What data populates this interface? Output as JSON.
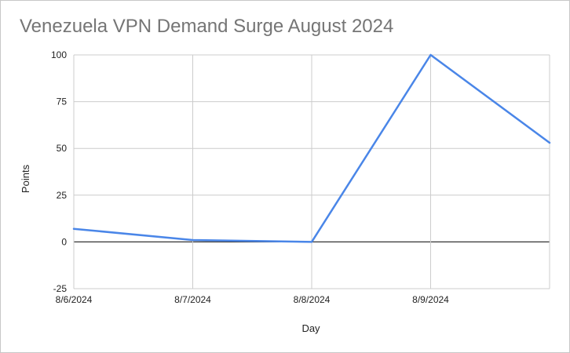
{
  "chart_data": {
    "type": "line",
    "title": "Venezuela VPN Demand Surge August 2024",
    "xlabel": "Day",
    "ylabel": "Points",
    "x_ticks": [
      "8/6/2024",
      "8/7/2024",
      "8/8/2024",
      "8/9/2024"
    ],
    "x_range": [
      "8/6/2024",
      "8/10/2024"
    ],
    "ylim": [
      -25,
      100
    ],
    "y_ticks": [
      -25,
      0,
      25,
      50,
      75,
      100
    ],
    "grid": true,
    "legend": "none",
    "series": [
      {
        "x": [
          "8/6/2024",
          "8/7/2024",
          "8/8/2024",
          "8/9/2024",
          "8/10/2024"
        ],
        "values": [
          7,
          1,
          0,
          100,
          53
        ],
        "color": "#4a86e8"
      }
    ]
  }
}
